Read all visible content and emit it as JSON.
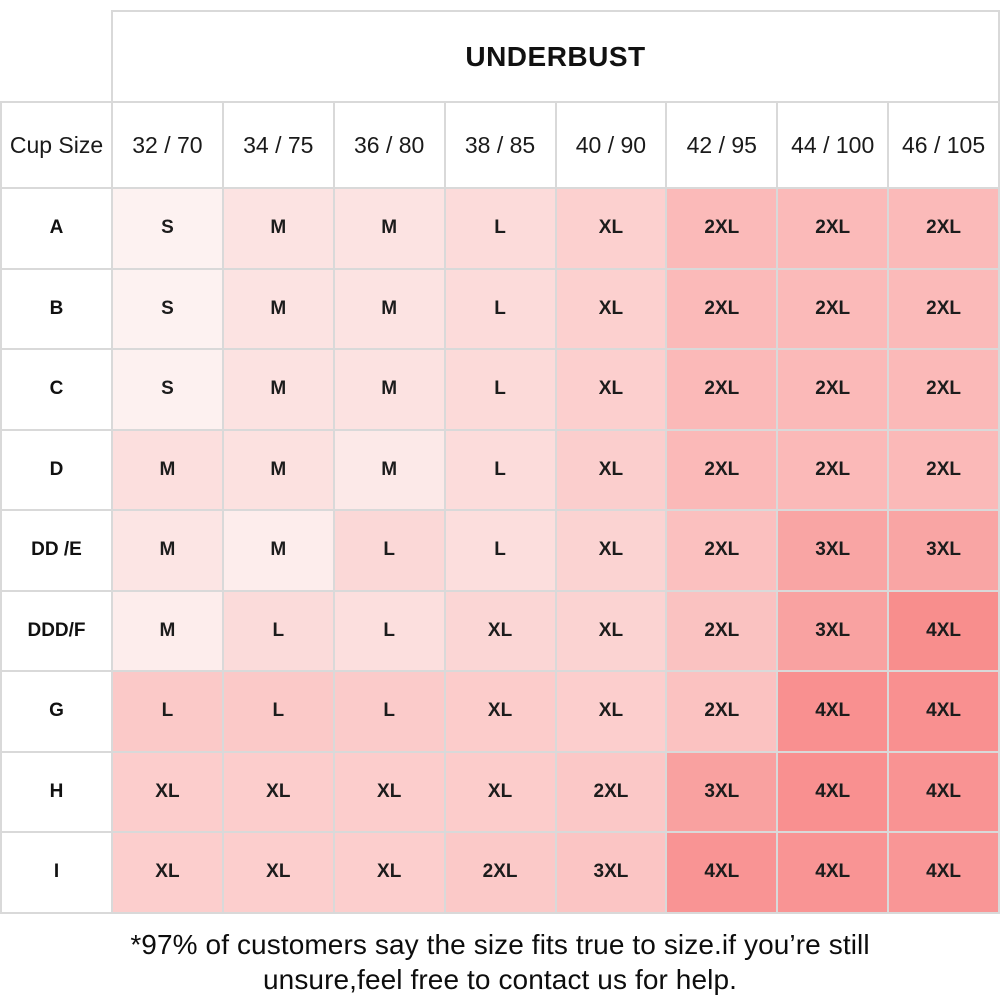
{
  "chart_data": {
    "type": "table",
    "title": "UNDERBUST",
    "corner_label": "Cup Size",
    "col_headers": [
      "32 / 70",
      "34 / 75",
      "36 / 80",
      "38 / 85",
      "40 / 90",
      "42 / 95",
      "44 / 100",
      "46 / 105"
    ],
    "rows": [
      {
        "cup": "A",
        "sizes": [
          "S",
          "M",
          "M",
          "L",
          "XL",
          "2XL",
          "2XL",
          "2XL"
        ],
        "colors": [
          "#fdf2f1",
          "#fce3e2",
          "#fce3e2",
          "#fcdbda",
          "#fcd0cf",
          "#fbbab9",
          "#fbbab9",
          "#fbbab9"
        ]
      },
      {
        "cup": "B",
        "sizes": [
          "S",
          "M",
          "M",
          "L",
          "XL",
          "2XL",
          "2XL",
          "2XL"
        ],
        "colors": [
          "#fdf2f1",
          "#fce3e2",
          "#fce3e2",
          "#fcdbda",
          "#fcd0cf",
          "#fbbab9",
          "#fbbab9",
          "#fbbab9"
        ]
      },
      {
        "cup": "C",
        "sizes": [
          "S",
          "M",
          "M",
          "L",
          "XL",
          "2XL",
          "2XL",
          "2XL"
        ],
        "colors": [
          "#fdf1f0",
          "#fce2e1",
          "#fce2e1",
          "#fcdad9",
          "#fccfce",
          "#fbb9b8",
          "#fbb9b8",
          "#fbb9b8"
        ]
      },
      {
        "cup": "D",
        "sizes": [
          "M",
          "M",
          "M",
          "L",
          "XL",
          "2XL",
          "2XL",
          "2XL"
        ],
        "colors": [
          "#fcdfde",
          "#fce1e0",
          "#fce9e8",
          "#fcdcdb",
          "#fbcecd",
          "#fbb9b8",
          "#fbb9b8",
          "#fbb9b8"
        ]
      },
      {
        "cup": "DD /E",
        "sizes": [
          "M",
          "M",
          "L",
          "L",
          "XL",
          "2XL",
          "3XL",
          "3XL"
        ],
        "colors": [
          "#fce5e4",
          "#fdedec",
          "#fbd8d7",
          "#fcdedd",
          "#fbd3d2",
          "#fbc0bf",
          "#f9a5a4",
          "#f9a5a4"
        ]
      },
      {
        "cup": "DDD/F",
        "sizes": [
          "M",
          "L",
          "L",
          "XL",
          "XL",
          "2XL",
          "3XL",
          "4XL"
        ],
        "colors": [
          "#fdedec",
          "#fbdbda",
          "#fcdfde",
          "#fbd6d5",
          "#fbd3d2",
          "#fac2c1",
          "#f9a2a1",
          "#f88e8d"
        ]
      },
      {
        "cup": "G",
        "sizes": [
          "L",
          "L",
          "L",
          "XL",
          "XL",
          "2XL",
          "4XL",
          "4XL"
        ],
        "colors": [
          "#fbc9c8",
          "#fbc9c8",
          "#fbcbca",
          "#fccccb",
          "#fccecd",
          "#fbc2c1",
          "#f99090",
          "#f99090"
        ]
      },
      {
        "cup": "H",
        "sizes": [
          "XL",
          "XL",
          "XL",
          "XL",
          "2XL",
          "3XL",
          "4XL",
          "4XL"
        ],
        "colors": [
          "#fccdcc",
          "#fccdcc",
          "#fccdcc",
          "#fccccb",
          "#fbc8c7",
          "#f9a1a0",
          "#f99090",
          "#f99393"
        ]
      },
      {
        "cup": "I",
        "sizes": [
          "XL",
          "XL",
          "XL",
          "2XL",
          "3XL",
          "4XL",
          "4XL",
          "4XL"
        ],
        "colors": [
          "#fccecd",
          "#fccecd",
          "#fccecd",
          "#fbc9c8",
          "#fbc5c4",
          "#f99494",
          "#f99494",
          "#f99696"
        ]
      }
    ],
    "size_color_legend": {
      "S": "#fdf1f0",
      "M": "#fce2e1",
      "L": "#fcd9d8",
      "XL": "#fccfce",
      "2XL": "#fbbab9",
      "3XL": "#faa3a2",
      "4XL": "#f99191"
    },
    "grid_color": "#d9d9d9"
  },
  "footnote": {
    "line1": "*97% of customers say the size fits true to size.if you’re still",
    "line2": "unsure,feel free to contact us for help."
  }
}
